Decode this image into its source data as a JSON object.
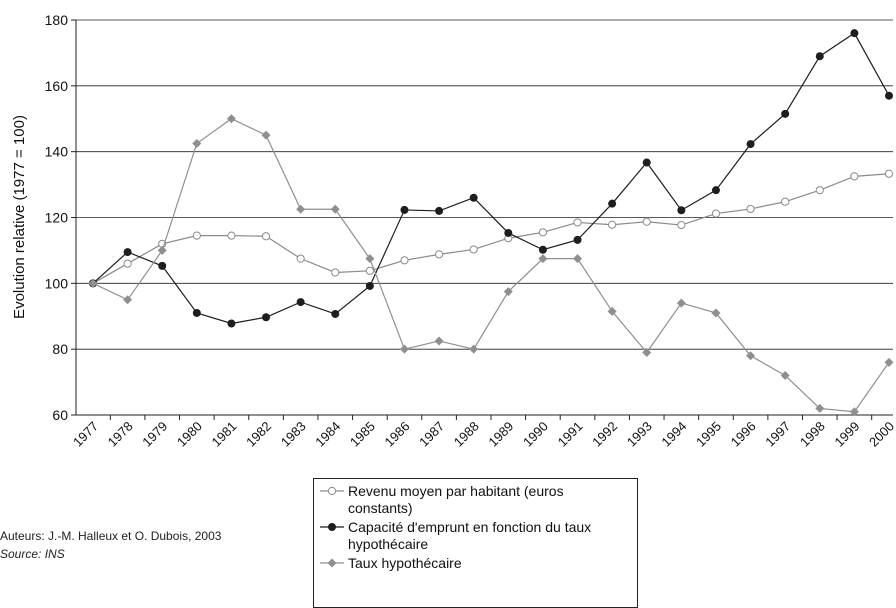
{
  "chart_data": {
    "type": "line",
    "y_label": "Evolution relative (1977 = 100)",
    "categories": [
      "1977",
      "1978",
      "1979",
      "1980",
      "1981",
      "1982",
      "1983",
      "1984",
      "1985",
      "1986",
      "1987",
      "1988",
      "1989",
      "1990",
      "1991",
      "1992",
      "1993",
      "1994",
      "1995",
      "1996",
      "1997",
      "1998",
      "1999",
      "2000"
    ],
    "series": [
      {
        "name": "Revenu moyen par habitant (euros constants)",
        "color": "#8a8a8a",
        "marker": "circle",
        "values": [
          100,
          106,
          112,
          114.5,
          114.5,
          114.3,
          107.5,
          103.3,
          103.8,
          107,
          108.8,
          110.3,
          113.7,
          115.5,
          118.5,
          117.8,
          118.7,
          117.7,
          121.2,
          122.6,
          124.8,
          128.3,
          132.5,
          133.3
        ]
      },
      {
        "name": "Capacité d'emprunt en fonction du taux hypothécaire",
        "color": "#1e1e1e",
        "marker": "dot",
        "values": [
          100,
          109.5,
          105.3,
          91,
          87.8,
          89.7,
          94.3,
          90.7,
          99.2,
          122.3,
          122,
          126,
          115.3,
          110.2,
          113.2,
          124.2,
          136.7,
          122.2,
          128.3,
          142.3,
          151.5,
          169,
          176,
          157
        ]
      },
      {
        "name": "Taux hypothécaire",
        "color": "#8f8f8f",
        "marker": "diamond",
        "values": [
          100,
          95,
          110,
          142.5,
          150,
          145,
          122.5,
          122.5,
          107.5,
          80,
          82.5,
          80,
          97.5,
          107.5,
          107.5,
          91.5,
          79,
          94,
          91,
          78,
          72,
          62,
          61,
          76
        ]
      }
    ],
    "ylim": [
      60,
      180
    ],
    "yticks": [
      60,
      80,
      100,
      120,
      140,
      160,
      180
    ],
    "grid": true,
    "credits": [
      "Auteurs: J.-M. Halleux et O. Dubois, 2003",
      "Source: INS"
    ]
  }
}
